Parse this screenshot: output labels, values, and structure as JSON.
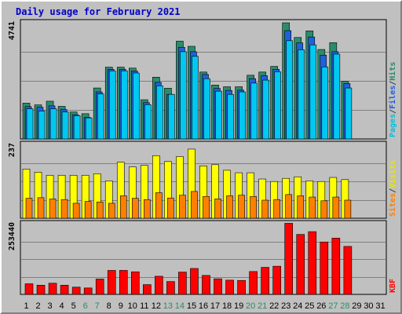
{
  "chart_data": {
    "type": "bar",
    "title": "Daily usage for February 2021",
    "categories": [
      "1",
      "2",
      "3",
      "4",
      "5",
      "6",
      "7",
      "8",
      "9",
      "10",
      "11",
      "12",
      "13",
      "14",
      "15",
      "16",
      "17",
      "18",
      "19",
      "20",
      "21",
      "22",
      "23",
      "24",
      "25",
      "26",
      "27",
      "28",
      "29",
      "30",
      "31"
    ],
    "weekend_days": [
      "6",
      "7",
      "13",
      "14",
      "20",
      "21",
      "27",
      "28"
    ],
    "panels": [
      {
        "name": "top",
        "max_label": "4741",
        "ymax": 4741,
        "axis_legend": [
          "Pages",
          "/",
          "Files",
          "/",
          "Hits"
        ],
        "axis_legend_colors": [
          "#00c0e0",
          "#404040",
          "#2060e0",
          "#404040",
          "#2a8c6a"
        ],
        "series": [
          {
            "name": "Hits",
            "color": "#2a8c6a",
            "values": [
              1460,
              1390,
              1540,
              1330,
              1100,
              1030,
              2080,
              2930,
              2930,
              2890,
              1600,
              2520,
              2070,
              3990,
              3780,
              2730,
              2200,
              2130,
              2130,
              2600,
              2730,
              2960,
              4740,
              4140,
              4410,
              3650,
              3930,
              2350,
              0,
              0,
              0
            ]
          },
          {
            "name": "Files",
            "color": "#2060e0",
            "values": [
              1320,
              1290,
              1350,
              1200,
              990,
              880,
              1920,
              2840,
              2840,
              2770,
              1480,
              2310,
              1820,
              3740,
              3560,
              2630,
              2060,
              1980,
              1990,
              2460,
              2580,
              2840,
              4420,
              3920,
              4160,
              3420,
              3560,
              2260,
              0,
              0,
              0
            ]
          },
          {
            "name": "Pages",
            "color": "#00c8f0",
            "values": [
              1230,
              1140,
              1230,
              1100,
              950,
              860,
              1840,
              2780,
              2780,
              2690,
              1400,
              2170,
              1820,
              3560,
              3370,
              2460,
              1950,
              1820,
              1920,
              2280,
              2400,
              2740,
              4010,
              3640,
              3840,
              2940,
              3460,
              2080,
              0,
              0,
              0
            ]
          }
        ]
      },
      {
        "name": "middle",
        "max_label": "237",
        "ymax": 237,
        "axis_legend": [
          "Sites",
          "/",
          "Visits"
        ],
        "axis_legend_colors": [
          "#ff8000",
          "#404040",
          "#e6e600"
        ],
        "series": [
          {
            "name": "Visits",
            "color": "#ffff00",
            "values": [
              158,
              148,
              138,
              138,
              138,
              138,
              143,
              120,
              180,
              165,
              170,
              201,
              182,
              198,
              222,
              168,
              172,
              154,
              146,
              146,
              126,
              118,
              128,
              133,
              120,
              118,
              131,
              124,
              0,
              0,
              0
            ]
          },
          {
            "name": "Sites",
            "color": "#ff8000",
            "values": [
              64,
              66,
              62,
              60,
              48,
              54,
              52,
              48,
              72,
              64,
              60,
              82,
              65,
              74,
              86,
              70,
              62,
              72,
              74,
              70,
              58,
              60,
              76,
              72,
              68,
              56,
              68,
              58,
              0,
              0,
              0
            ]
          }
        ]
      },
      {
        "name": "bottom",
        "max_label": "253440",
        "ymax": 253440,
        "axis_legend": [
          "KB",
          "F"
        ],
        "axis_legend_colors": [
          "#ff0000",
          "#ff0000"
        ],
        "series": [
          {
            "name": "KB F",
            "color": "#ff0000",
            "values": [
              38000,
              33000,
              40000,
              33000,
              26000,
              23000,
              55000,
              86000,
              86000,
              81000,
              35000,
              65000,
              46000,
              80000,
              93000,
              68000,
              56000,
              51000,
              50000,
              82000,
              97000,
              101000,
              255000,
              215000,
              225000,
              188000,
              202000,
              172000,
              0,
              0,
              0
            ]
          }
        ]
      }
    ]
  }
}
